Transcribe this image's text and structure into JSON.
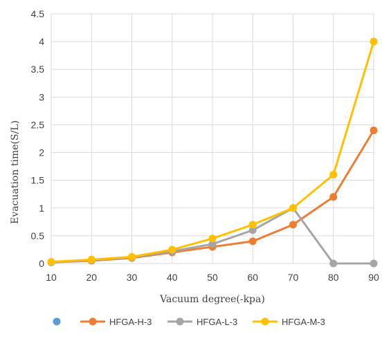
{
  "chart_data": {
    "type": "line",
    "title": "",
    "xlabel": "Vacuum degree(-kpa)",
    "ylabel": "Evacuation time(S/L)",
    "x": [
      10,
      20,
      30,
      40,
      50,
      60,
      70,
      80,
      90
    ],
    "xlim": [
      10,
      90
    ],
    "ylim": [
      0,
      4.5
    ],
    "yticks": [
      "0",
      "0.5",
      "1",
      "1.5",
      "2",
      "2.5",
      "3",
      "3.5",
      "4",
      "4.5"
    ],
    "xticks": [
      "10",
      "20",
      "30",
      "40",
      "50",
      "60",
      "70",
      "80",
      "90"
    ],
    "grid": "vertical and horizontal",
    "legend_position": "bottom",
    "legend_first_marker_color": "#5B9BD5",
    "series": [
      {
        "name": "HFGA-H-3",
        "color": "#ED7D31",
        "values": [
          0.02,
          0.05,
          0.1,
          0.2,
          0.3,
          0.4,
          0.7,
          1.2,
          2.4
        ]
      },
      {
        "name": "HFGA-L-3",
        "color": "#A5A5A5",
        "values": [
          0.02,
          0.06,
          0.11,
          0.22,
          0.35,
          0.6,
          1.0,
          0.0,
          0.0
        ]
      },
      {
        "name": "HFGA-M-3",
        "color": "#FFC000",
        "values": [
          0.03,
          0.07,
          0.12,
          0.25,
          0.45,
          0.7,
          1.0,
          1.6,
          4.0
        ]
      }
    ]
  }
}
